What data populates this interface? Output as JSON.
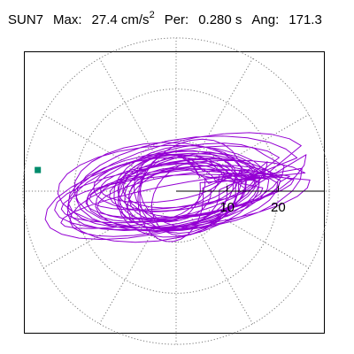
{
  "header": {
    "station": "SUN7",
    "max_label": "Max:",
    "max_value": "27.4 cm/s",
    "max_exponent": "2",
    "per_label": "Per:",
    "per_value": "0.280 s",
    "ang_label": "Ang:",
    "ang_value": "171.3"
  },
  "chart_data": {
    "type": "scatter",
    "plot": "polar particle-motion hodogram",
    "radial_ticks": [
      {
        "value": 10,
        "label": "10"
      },
      {
        "value": 20,
        "label": "20"
      }
    ],
    "radial_grid": [
      10,
      20,
      30
    ],
    "radial_max": 30,
    "units": "cm/s2",
    "max_amplitude": 27.4,
    "angle_deg": 171.3,
    "marker": {
      "value": 27.4,
      "angle_deg": 171.3,
      "color": "#008b6b"
    },
    "trace_color": "#9400d3",
    "grid": true
  }
}
